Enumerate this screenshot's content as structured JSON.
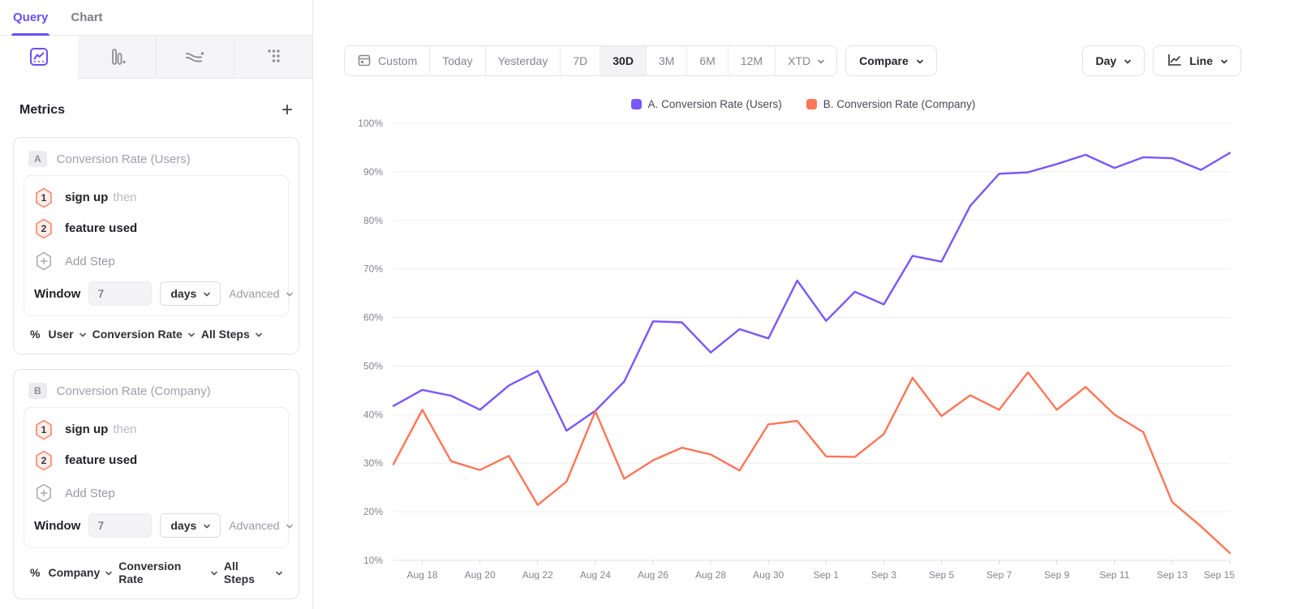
{
  "sidebar": {
    "tabs": [
      {
        "label": "Query",
        "active": true
      },
      {
        "label": "Chart",
        "active": false
      }
    ],
    "chart_type_icons": [
      {
        "name": "insights-line-icon",
        "active": true
      },
      {
        "name": "funnel-bars-icon",
        "active": false
      },
      {
        "name": "flow-icon",
        "active": false
      },
      {
        "name": "retention-dots-icon",
        "active": false
      }
    ],
    "metrics": {
      "title": "Metrics",
      "add_label": "+",
      "cards": [
        {
          "badge": "A",
          "title": "Conversion Rate (Users)",
          "steps": [
            {
              "num": "1",
              "label": "sign up",
              "suffix": "then"
            },
            {
              "num": "2",
              "label": "feature used",
              "suffix": ""
            }
          ],
          "add_step_label": "Add Step",
          "window": {
            "label": "Window",
            "value": "7",
            "unit": "days",
            "advanced_label": "Advanced"
          },
          "footer": {
            "percent": "%",
            "entity": "User",
            "measure": "Conversion Rate",
            "steps_scope": "All Steps"
          }
        },
        {
          "badge": "B",
          "title": "Conversion Rate (Company)",
          "steps": [
            {
              "num": "1",
              "label": "sign up",
              "suffix": "then"
            },
            {
              "num": "2",
              "label": "feature used",
              "suffix": ""
            }
          ],
          "add_step_label": "Add Step",
          "window": {
            "label": "Window",
            "value": "7",
            "unit": "days",
            "advanced_label": "Advanced"
          },
          "footer": {
            "percent": "%",
            "entity": "Company",
            "measure": "Conversion Rate",
            "steps_scope": "All Steps"
          }
        }
      ]
    }
  },
  "toolbar": {
    "date_ranges": [
      {
        "label": "Custom",
        "active": false
      },
      {
        "label": "Today",
        "active": false
      },
      {
        "label": "Yesterday",
        "active": false
      },
      {
        "label": "7D",
        "active": false
      },
      {
        "label": "30D",
        "active": true
      },
      {
        "label": "3M",
        "active": false
      },
      {
        "label": "6M",
        "active": false
      },
      {
        "label": "12M",
        "active": false
      },
      {
        "label": "XTD",
        "active": false
      }
    ],
    "compare_label": "Compare",
    "granularity_label": "Day",
    "chart_style_label": "Line"
  },
  "legend": [
    {
      "label": "A. Conversion Rate (Users)",
      "color": "#7a56fb"
    },
    {
      "label": "B. Conversion Rate (Company)",
      "color": "#ff7557"
    }
  ],
  "colors": {
    "accent_purple": "#6b4ef6",
    "series_a": "#7a56fb",
    "series_b": "#ff7557",
    "step_badge_border": "#f5846c",
    "step_badge_fill": "#fdeee9"
  },
  "chart_data": {
    "type": "line",
    "x": [
      "Aug 17",
      "Aug 18",
      "Aug 19",
      "Aug 20",
      "Aug 21",
      "Aug 22",
      "Aug 23",
      "Aug 24",
      "Aug 25",
      "Aug 26",
      "Aug 27",
      "Aug 28",
      "Aug 29",
      "Aug 30",
      "Aug 31",
      "Sep 1",
      "Sep 2",
      "Sep 3",
      "Sep 4",
      "Sep 5",
      "Sep 6",
      "Sep 7",
      "Sep 8",
      "Sep 9",
      "Sep 10",
      "Sep 11",
      "Sep 12",
      "Sep 13",
      "Sep 14",
      "Sep 15"
    ],
    "x_tick_labels": [
      "Aug 18",
      "Aug 20",
      "Aug 22",
      "Aug 24",
      "Aug 26",
      "Aug 28",
      "Aug 30",
      "Sep 1",
      "Sep 3",
      "Sep 5",
      "Sep 7",
      "Sep 9",
      "Sep 11",
      "Sep 13",
      "Sep 15"
    ],
    "series": [
      {
        "name": "A. Conversion Rate (Users)",
        "color": "#7a56fb",
        "values": [
          41.8,
          45.1,
          43.9,
          41.0,
          46.0,
          49.0,
          36.7,
          40.8,
          46.8,
          59.2,
          59.0,
          52.8,
          57.6,
          55.7,
          67.6,
          59.3,
          65.3,
          62.7,
          72.7,
          71.5,
          83.0,
          89.6,
          89.9,
          91.6,
          93.5,
          90.8,
          93.0,
          92.8,
          90.4,
          93.9
        ]
      },
      {
        "name": "B. Conversion Rate (Company)",
        "color": "#ff7557",
        "values": [
          29.8,
          41.0,
          30.4,
          28.6,
          31.5,
          21.4,
          26.2,
          40.7,
          26.8,
          30.6,
          33.2,
          31.8,
          28.5,
          38.0,
          38.7,
          31.4,
          31.3,
          36.0,
          47.6,
          39.7,
          44.0,
          41.0,
          48.7,
          41.0,
          45.7,
          40.0,
          36.4,
          22.0,
          17.0,
          11.5
        ]
      }
    ],
    "ylim": [
      10,
      100
    ],
    "yticks": [
      100,
      90,
      80,
      70,
      60,
      50,
      40,
      30,
      20,
      10
    ],
    "ytick_suffix": "%",
    "grid": true,
    "legend_position": "top-center",
    "title": "",
    "xlabel": "",
    "ylabel": ""
  }
}
